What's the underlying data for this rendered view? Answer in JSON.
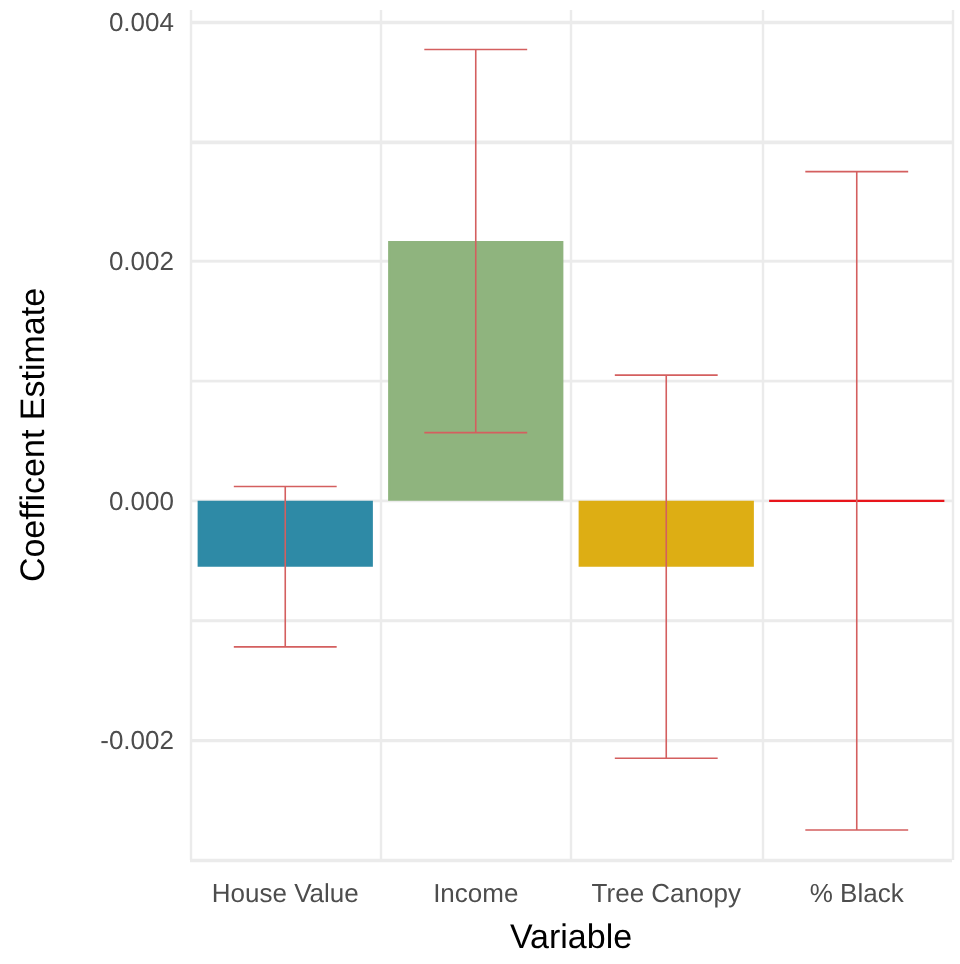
{
  "chart_data": {
    "type": "bar",
    "xlabel": "Variable",
    "ylabel": "Coefficent Estimate",
    "categories": [
      "House Value",
      "Income",
      "Tree Canopy",
      "% Black"
    ],
    "values": [
      -0.00055,
      0.00217,
      -0.00055,
      0
    ],
    "colors": [
      "#2e8aa6",
      "#8fb47e",
      "#ddae14",
      "#e8151b"
    ],
    "errors": [
      0.00067,
      0.0016,
      0.0016,
      0.00275
    ],
    "ylim": [
      -0.003,
      0.0041
    ],
    "yticks": [
      {
        "value": -0.003,
        "label": null
      },
      {
        "value": -0.002,
        "label": "-0.002"
      },
      {
        "value": -0.001,
        "label": null
      },
      {
        "value": 0,
        "label": "0.000"
      },
      {
        "value": 0.001,
        "label": null
      },
      {
        "value": 0.002,
        "label": "0.002"
      },
      {
        "value": 0.003,
        "label": null
      },
      {
        "value": 0.004,
        "label": "0.004"
      }
    ],
    "grid": true
  }
}
